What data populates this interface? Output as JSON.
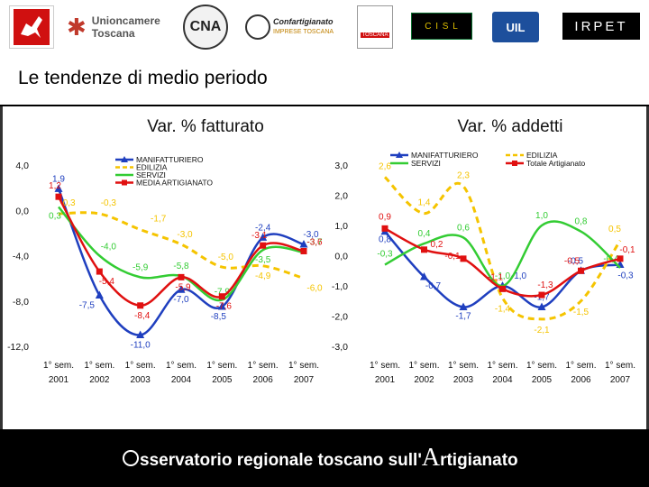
{
  "logos": {
    "unioncamere_line1": "Unioncamere",
    "unioncamere_line2": "Toscana",
    "cna": "CNA",
    "confartigianato": "Confartigianato",
    "confartigianato_sub": "IMPRESE TOSCANA",
    "cgil_line1": "CGIL",
    "cgil_line2": "TOSCANA",
    "cisl": "C I S L",
    "uil": "UIL",
    "irpet": "IRPET"
  },
  "page": {
    "title": "Le tendenze di medio periodo"
  },
  "footer": {
    "prefix": "sservatorio regionale toscano sull'",
    "big_letter": "A",
    "suffix": "rtigianato"
  },
  "colors": {
    "manifatturiero": "#1f3fbf",
    "edilizia": "#f5c400",
    "servizi": "#33cc33",
    "media": "#e01010"
  },
  "chart_data": [
    {
      "type": "line",
      "title": "Var. % fatturato",
      "categories": [
        "1° sem. 2001",
        "1° sem. 2002",
        "1° sem. 2003",
        "1° sem. 2004",
        "1° sem. 2005",
        "1° sem. 2006",
        "1° sem. 2007"
      ],
      "ylim": [
        -12,
        4
      ],
      "yticks": [
        "4,0",
        "0,0",
        "-4,0",
        "-8,0",
        "-12,0"
      ],
      "series": [
        {
          "name": "MANIFATTURIERO",
          "values": [
            1.9,
            -7.5,
            -11.0,
            -7.0,
            -8.5,
            -2.4,
            -3.0
          ],
          "labels": [
            "1,9",
            "-7,5",
            "-11,0",
            "-7,0",
            "-8,5",
            "-2,4",
            "-3,0"
          ]
        },
        {
          "name": "EDILIZIA",
          "values": [
            -0.3,
            -0.3,
            -1.7,
            -3.0,
            -5.0,
            -4.9,
            -6.0
          ],
          "labels": [
            "-0,3",
            "-0,3",
            "-1,7",
            "-3,0",
            "-5,0",
            "-4,9",
            "-6,0"
          ]
        },
        {
          "name": "SERVIZI",
          "values": [
            0.3,
            -4.0,
            -5.9,
            -5.8,
            -7.9,
            -3.5,
            -3.7
          ],
          "labels": [
            "0,3",
            "-4,0",
            "-5,9",
            "-5,8",
            "-7,9",
            "-3,5",
            "-3,7"
          ]
        },
        {
          "name": "MEDIA ARTIGIANATO",
          "values": [
            1.2,
            -5.4,
            -8.4,
            -5.9,
            -7.6,
            -3.1,
            -3.6
          ],
          "labels": [
            "1,2",
            "-5,4",
            "-8,4",
            "-5,9",
            "-7,6",
            "-3,1",
            "-3,6"
          ]
        }
      ]
    },
    {
      "type": "line",
      "title": "Var. % addetti",
      "categories": [
        "1° sem. 2001",
        "1° sem. 2002",
        "1° sem. 2003",
        "1° sem. 2004",
        "1° sem. 2005",
        "1° sem. 2006",
        "1° sem. 2007"
      ],
      "ylim": [
        -3,
        3
      ],
      "yticks": [
        "3,0",
        "2,0",
        "1,0",
        "0,0",
        "-1,0",
        "-2,0",
        "-3,0"
      ],
      "series": [
        {
          "name": "MANIFATTURIERO",
          "values": [
            0.8,
            -0.7,
            -1.7,
            -1.0,
            -1.7,
            -0.5,
            -0.3
          ],
          "labels": [
            "0,8",
            "-0,7",
            "-1,7",
            "-1,0",
            "-1,7",
            "-0,5",
            "-0,3"
          ]
        },
        {
          "name": "EDILIZIA",
          "values": [
            2.6,
            1.4,
            2.3,
            -1.4,
            -2.1,
            -1.5,
            0.5
          ],
          "labels": [
            "2,6",
            "1,4",
            "2,3",
            "-1,4",
            "-2,1",
            "-1,5",
            "0,5"
          ]
        },
        {
          "name": "SERVIZI",
          "values": [
            -0.3,
            0.4,
            0.6,
            -1.0,
            1.0,
            0.8,
            -0.4
          ],
          "labels": [
            "-0,3",
            "0,4",
            "0,6",
            "-1,0",
            "1,0",
            "0,8",
            "-0,4"
          ]
        },
        {
          "name": "Totale Artigianato",
          "values": [
            0.9,
            0.2,
            -0.1,
            -1.1,
            -1.3,
            -0.5,
            -0.1
          ],
          "labels": [
            "0,9",
            "0,2",
            "-0,1",
            "-1,1",
            "-1,3",
            "-0,5",
            "-0,1"
          ]
        }
      ]
    }
  ]
}
